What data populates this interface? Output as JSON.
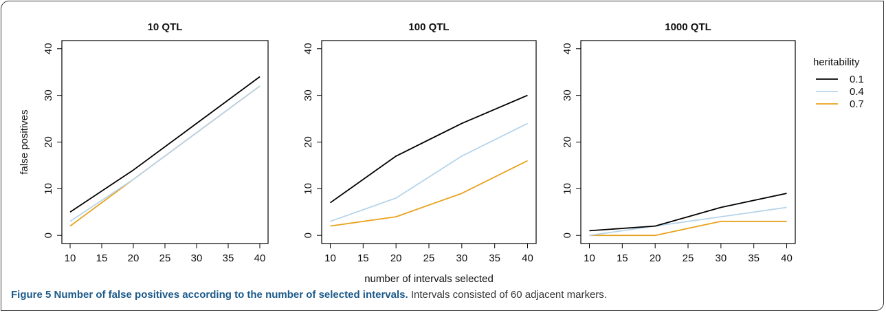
{
  "caption": {
    "title": "Figure 5 Number of false positives according to the number of selected intervals.",
    "text": "Intervals consisted of 60 adjacent markers."
  },
  "colors": {
    "0.1": "#000000",
    "0.4": "#b6d4ea",
    "0.7": "#e8a21c"
  },
  "chart_data": {
    "type": "line",
    "xlabel": "number of intervals selected",
    "ylabel": "false positives",
    "xticks": [
      10,
      15,
      20,
      25,
      30,
      35,
      40
    ],
    "yticks": [
      0,
      10,
      20,
      30,
      40
    ],
    "xlim": [
      10,
      40
    ],
    "ylim": [
      0,
      40
    ],
    "legend": {
      "title": "heritability",
      "placement": "right",
      "entries": [
        "0.1",
        "0.4",
        "0.7"
      ]
    },
    "panels": [
      {
        "title": "10 QTL",
        "x": [
          10,
          20,
          30,
          40
        ],
        "series": [
          {
            "name": "0.1",
            "values": [
              5,
              14,
              24,
              34
            ]
          },
          {
            "name": "0.4",
            "values": [
              3,
              12,
              22,
              32
            ]
          },
          {
            "name": "0.7",
            "values": [
              2,
              12,
              22,
              32
            ]
          }
        ]
      },
      {
        "title": "100 QTL",
        "x": [
          10,
          20,
          30,
          40
        ],
        "series": [
          {
            "name": "0.1",
            "values": [
              7,
              17,
              24,
              30
            ]
          },
          {
            "name": "0.4",
            "values": [
              3,
              8,
              17,
              24
            ]
          },
          {
            "name": "0.7",
            "values": [
              2,
              4,
              9,
              16
            ]
          }
        ]
      },
      {
        "title": "1000 QTL",
        "x": [
          10,
          20,
          30,
          40
        ],
        "series": [
          {
            "name": "0.1",
            "values": [
              1,
              2,
              6,
              9
            ]
          },
          {
            "name": "0.4",
            "values": [
              0,
              2,
              4,
              6
            ]
          },
          {
            "name": "0.7",
            "values": [
              0,
              0,
              3,
              3
            ]
          }
        ]
      }
    ]
  }
}
